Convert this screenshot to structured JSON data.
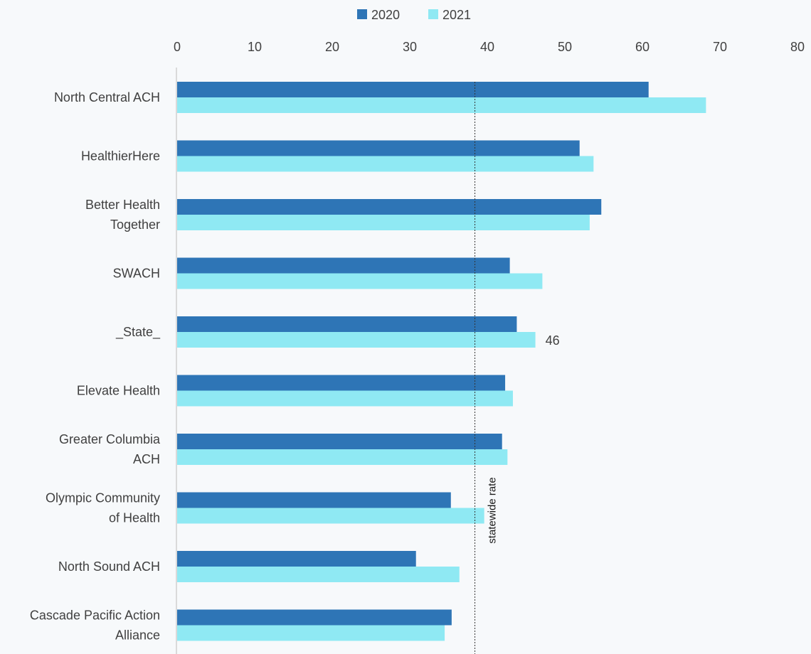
{
  "chart_data": {
    "type": "bar",
    "orientation": "horizontal",
    "categories": [
      [
        "North Central ACH"
      ],
      [
        "HealthierHere"
      ],
      [
        "Better Health",
        "Together"
      ],
      [
        "SWACH"
      ],
      [
        "_State_"
      ],
      [
        "Elevate Health"
      ],
      [
        "Greater Columbia",
        "ACH"
      ],
      [
        "Olympic Community",
        "of Health"
      ],
      [
        "North Sound ACH"
      ],
      [
        "Cascade Pacific Action",
        "Alliance"
      ]
    ],
    "series": [
      {
        "name": "2020",
        "color": "#2e75b6",
        "values": [
          60.8,
          51.9,
          54.7,
          42.9,
          43.8,
          42.3,
          41.9,
          35.3,
          30.8,
          35.4
        ]
      },
      {
        "name": "2021",
        "color": "#8fe9f3",
        "values": [
          68.2,
          53.7,
          53.2,
          47.1,
          46.2,
          43.3,
          42.6,
          39.6,
          36.4,
          34.5
        ]
      }
    ],
    "xlim": [
      0,
      80
    ],
    "xticks": [
      "0",
      "10",
      "20",
      "30",
      "40",
      "50",
      "60",
      "70",
      "80"
    ],
    "legend_position": "top-center",
    "grid": false,
    "annotations": {
      "data_label": {
        "category_index": 4,
        "series_index": 1,
        "text": "46"
      },
      "reference_line": {
        "value": 38.4,
        "label": "statewide  rate",
        "style": "dotted"
      }
    }
  }
}
